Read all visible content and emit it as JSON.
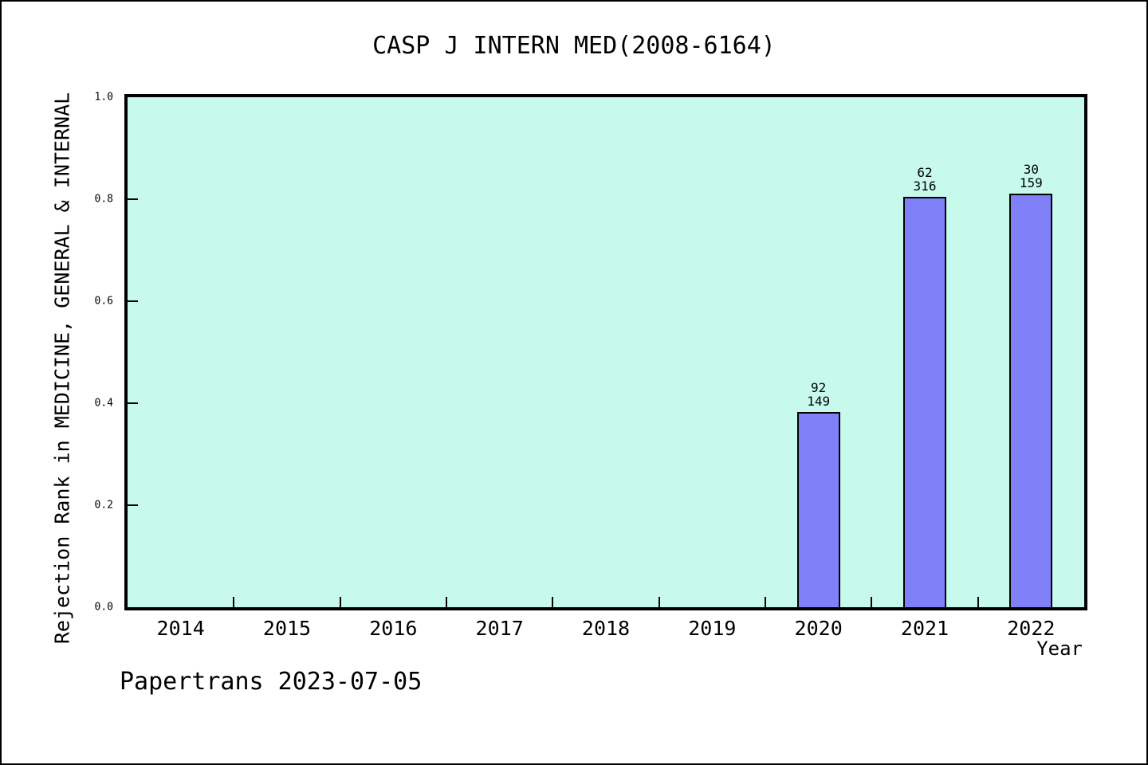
{
  "chart_data": {
    "type": "bar",
    "title": "CASP J INTERN MED(2008-6164)",
    "xlabel": "Year",
    "ylabel": "Rejection Rank in MEDICINE, GENERAL & INTERNAL",
    "categories": [
      "2014",
      "2015",
      "2016",
      "2017",
      "2018",
      "2019",
      "2020",
      "2021",
      "2022"
    ],
    "bars": [
      {
        "category": "2020",
        "value": 0.383,
        "label_lines": [
          "92",
          "149"
        ]
      },
      {
        "category": "2021",
        "value": 0.804,
        "label_lines": [
          "62",
          "316"
        ]
      },
      {
        "category": "2022",
        "value": 0.811,
        "label_lines": [
          "30",
          "159"
        ]
      }
    ],
    "ylim": [
      0.0,
      1.0
    ],
    "yticks": [
      {
        "value": 0.0,
        "label": "0.0"
      },
      {
        "value": 0.2,
        "label": "0.2"
      },
      {
        "value": 0.4,
        "label": "0.4"
      },
      {
        "value": 0.6,
        "label": "0.6"
      },
      {
        "value": 0.8,
        "label": "0.8"
      },
      {
        "value": 1.0,
        "label": "1.0"
      }
    ],
    "grid": false,
    "legend": null,
    "annotation": "Papertrans 2023-07-05",
    "colors": {
      "plot_bg": "#c7faec",
      "bar_fill": "#8080f8",
      "bar_edge": "#000000",
      "axis": "#000000",
      "text": "#000000",
      "figure_bg": "#ffffff"
    }
  }
}
